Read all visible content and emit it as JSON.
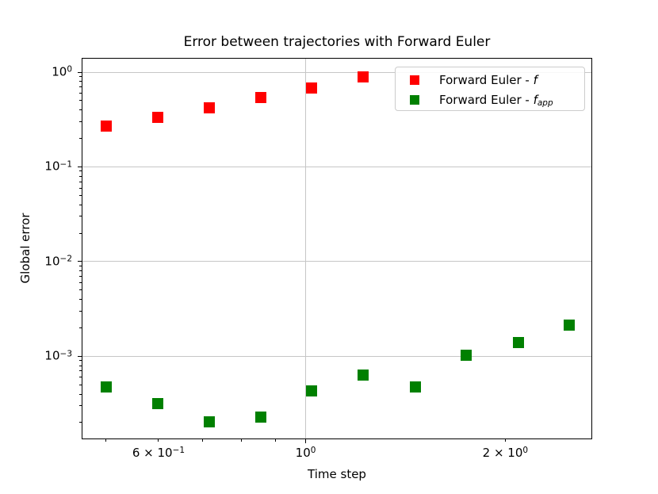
{
  "chart_data": {
    "type": "scatter",
    "title": "Error between trajectories with Forward Euler",
    "xlabel": "Time step",
    "ylabel": "Global error",
    "xscale": "log",
    "yscale": "log",
    "xlim": [
      0.4607,
      2.697
    ],
    "ylim": [
      0.000136,
      1.388
    ],
    "grid": true,
    "legend_position": "upper right",
    "x": [
      0.5,
      0.598,
      0.715,
      0.855,
      1.022,
      1.222,
      1.462,
      1.748,
      2.091,
      2.5
    ],
    "series": [
      {
        "name": "Forward Euler - f",
        "label_text": "Forward Euler - ",
        "math": "f",
        "sub": "",
        "color": "#ff0000",
        "marker": "square",
        "values": [
          0.272,
          0.335,
          0.419,
          0.535,
          0.683,
          0.894,
          null,
          null,
          null,
          null
        ]
      },
      {
        "name": "Forward Euler - f_app",
        "label_text": "Forward Euler - ",
        "math": "f",
        "sub": "app",
        "color": "#008000",
        "marker": "square",
        "values": [
          0.00048,
          0.000315,
          0.000203,
          0.000231,
          0.000429,
          0.000634,
          0.000474,
          0.00102,
          0.0014,
          0.00212
        ]
      }
    ],
    "xticks": [
      {
        "value": 0.5,
        "kind": "minor"
      },
      {
        "value": 0.6,
        "kind": "minor",
        "label": {
          "pre": "6 × ",
          "base": "10",
          "exp": "−1"
        }
      },
      {
        "value": 0.7,
        "kind": "minor"
      },
      {
        "value": 0.8,
        "kind": "minor"
      },
      {
        "value": 0.9,
        "kind": "minor"
      },
      {
        "value": 1.0,
        "kind": "major",
        "label": {
          "pre": "",
          "base": "10",
          "exp": "0"
        }
      },
      {
        "value": 2.0,
        "kind": "minor",
        "label": {
          "pre": "2 × ",
          "base": "10",
          "exp": "0"
        }
      }
    ],
    "yticks": [
      {
        "value": 1.0,
        "kind": "major",
        "label": {
          "pre": "",
          "base": "10",
          "exp": "0"
        }
      },
      {
        "value": 0.1,
        "kind": "major",
        "label": {
          "pre": "",
          "base": "10",
          "exp": "−1"
        }
      },
      {
        "value": 0.01,
        "kind": "major",
        "label": {
          "pre": "",
          "base": "10",
          "exp": "−2"
        }
      },
      {
        "value": 0.001,
        "kind": "major",
        "label": {
          "pre": "",
          "base": "10",
          "exp": "−3"
        }
      }
    ],
    "colors": {
      "series_f": "#ff0000",
      "series_f_app": "#008000",
      "grid": "#c6c6c6",
      "spine": "#000000",
      "legend_border": "#cccccc"
    }
  }
}
